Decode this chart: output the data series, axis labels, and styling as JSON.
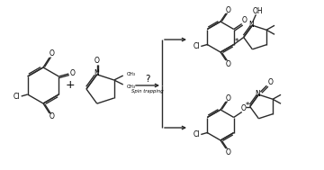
{
  "bg_color": "#ffffff",
  "line_color": "#2a2a2a",
  "text_color": "#000000",
  "figsize": [
    3.6,
    1.89
  ],
  "dpi": 100,
  "lw": 1.0,
  "font_size_label": 6.0,
  "font_size_atom": 5.5,
  "font_size_arrow": 7.0,
  "font_size_spin": 4.2,
  "arrow_text": "?",
  "spin_text": "Spin trapping",
  "plus_text": "+",
  "star": "*",
  "cl": "Cl",
  "oh": "OH",
  "n_atom": "N",
  "o_atom": "O"
}
